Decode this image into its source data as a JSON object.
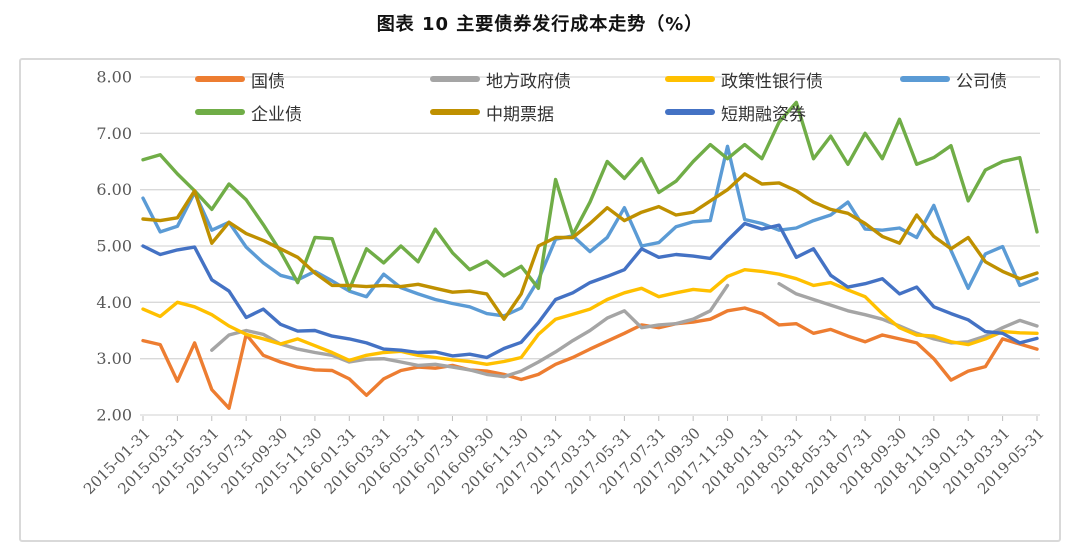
{
  "title": "图表 10 主要债券发行成本走势（%）",
  "chart_data": {
    "type": "line",
    "title": "图表 10 主要债券发行成本走势（%）",
    "xlabel": "",
    "ylabel": "",
    "ylim": [
      2.0,
      8.0
    ],
    "grid": true,
    "legend_position": "top",
    "y_tick_labels": [
      "8.00",
      "7.00",
      "6.00",
      "5.00",
      "4.00",
      "3.00",
      "2.00"
    ],
    "x_tick_labels": [
      "2015-01-31",
      "2015-03-31",
      "2015-05-31",
      "2015-07-31",
      "2015-09-30",
      "2015-11-30",
      "2016-01-31",
      "2016-03-31",
      "2016-05-31",
      "2016-07-31",
      "2016-09-30",
      "2016-11-30",
      "2017-01-31",
      "2017-03-31",
      "2017-05-31",
      "2017-07-31",
      "2017-09-30",
      "2017-11-30",
      "2018-01-31",
      "2018-03-31",
      "2018-05-31",
      "2018-07-31",
      "2018-09-30",
      "2018-11-30",
      "2019-01-31",
      "2019-03-31",
      "2019-05-31"
    ],
    "x": [
      "2015-01",
      "2015-02",
      "2015-03",
      "2015-04",
      "2015-05",
      "2015-06",
      "2015-07",
      "2015-08",
      "2015-09",
      "2015-10",
      "2015-11",
      "2015-12",
      "2016-01",
      "2016-02",
      "2016-03",
      "2016-04",
      "2016-05",
      "2016-06",
      "2016-07",
      "2016-08",
      "2016-09",
      "2016-10",
      "2016-11",
      "2016-12",
      "2017-01",
      "2017-02",
      "2017-03",
      "2017-04",
      "2017-05",
      "2017-06",
      "2017-07",
      "2017-08",
      "2017-09",
      "2017-10",
      "2017-11",
      "2017-12",
      "2018-01",
      "2018-02",
      "2018-03",
      "2018-04",
      "2018-05",
      "2018-06",
      "2018-07",
      "2018-08",
      "2018-09",
      "2018-10",
      "2018-11",
      "2018-12",
      "2019-01",
      "2019-02",
      "2019-03",
      "2019-04",
      "2019-05"
    ],
    "series": [
      {
        "name": "国债",
        "key": "treasury-bond",
        "color": "#ED7D31",
        "values": [
          3.32,
          3.25,
          2.6,
          3.28,
          2.45,
          2.12,
          3.43,
          3.06,
          2.94,
          2.85,
          2.8,
          2.79,
          2.64,
          2.35,
          2.64,
          2.79,
          2.85,
          2.83,
          2.88,
          2.8,
          2.78,
          2.72,
          2.63,
          2.72,
          2.9,
          3.02,
          3.17,
          3.31,
          3.45,
          3.6,
          3.55,
          3.62,
          3.65,
          3.7,
          3.85,
          3.9,
          3.8,
          3.6,
          3.62,
          3.45,
          3.52,
          3.4,
          3.3,
          3.42,
          3.35,
          3.28,
          3.0,
          2.62,
          2.78,
          2.86,
          3.35,
          3.26,
          3.17
        ]
      },
      {
        "name": "地方政府债",
        "key": "local-government-bond",
        "color": "#A5A5A5",
        "values": [
          null,
          null,
          null,
          null,
          3.15,
          3.42,
          3.5,
          3.43,
          3.26,
          3.17,
          3.11,
          3.06,
          2.94,
          2.99,
          3.0,
          2.94,
          2.88,
          2.9,
          2.85,
          2.8,
          2.72,
          2.68,
          2.78,
          2.94,
          3.12,
          3.32,
          3.5,
          3.72,
          3.85,
          3.55,
          3.6,
          3.62,
          3.7,
          3.85,
          4.3,
          null,
          null,
          4.33,
          4.15,
          4.05,
          3.95,
          3.85,
          3.78,
          3.7,
          3.58,
          3.45,
          3.35,
          3.28,
          3.3,
          3.4,
          3.55,
          3.68,
          3.58
        ]
      },
      {
        "name": "政策性银行债",
        "key": "policy-bank-bond",
        "color": "#FFC000",
        "values": [
          3.88,
          3.75,
          4.0,
          3.92,
          3.78,
          3.58,
          3.43,
          3.35,
          3.26,
          3.35,
          3.23,
          3.11,
          2.97,
          3.06,
          3.11,
          3.13,
          3.06,
          3.02,
          2.98,
          2.95,
          2.9,
          2.95,
          3.02,
          3.43,
          3.7,
          3.79,
          3.88,
          4.05,
          4.17,
          4.25,
          4.1,
          4.17,
          4.23,
          4.2,
          4.46,
          4.58,
          4.55,
          4.5,
          4.42,
          4.3,
          4.35,
          4.22,
          4.1,
          3.8,
          3.55,
          3.42,
          3.4,
          3.3,
          3.25,
          3.35,
          3.48,
          3.46,
          3.45
        ]
      },
      {
        "name": "公司债",
        "key": "corporate-bond",
        "color": "#5B9BD5",
        "values": [
          5.85,
          5.25,
          5.35,
          5.95,
          5.28,
          5.42,
          4.98,
          4.7,
          4.48,
          4.4,
          4.55,
          4.38,
          4.2,
          4.1,
          4.5,
          4.26,
          4.15,
          4.05,
          3.98,
          3.92,
          3.8,
          3.76,
          3.9,
          4.4,
          5.12,
          5.18,
          4.9,
          5.15,
          5.68,
          5.0,
          5.06,
          5.34,
          5.43,
          5.45,
          6.77,
          5.47,
          5.4,
          5.28,
          5.32,
          5.45,
          5.55,
          5.78,
          5.3,
          5.28,
          5.32,
          5.15,
          5.72,
          4.92,
          4.25,
          4.86,
          4.99,
          4.3,
          4.42
        ]
      },
      {
        "name": "企业债",
        "key": "enterprise-bond",
        "color": "#70AD47",
        "values": [
          6.53,
          6.62,
          6.28,
          5.98,
          5.65,
          6.1,
          5.82,
          5.38,
          4.9,
          4.35,
          5.15,
          5.13,
          4.23,
          4.95,
          4.7,
          5.0,
          4.72,
          5.3,
          4.88,
          4.58,
          4.73,
          4.47,
          4.64,
          4.25,
          6.18,
          5.2,
          5.78,
          6.5,
          6.2,
          6.55,
          5.95,
          6.15,
          6.5,
          6.8,
          6.55,
          6.8,
          6.55,
          7.2,
          7.55,
          6.55,
          6.95,
          6.45,
          7.0,
          6.55,
          7.25,
          6.45,
          6.57,
          6.78,
          5.8,
          6.35,
          6.5,
          6.57,
          5.25
        ]
      },
      {
        "name": "中期票据",
        "key": "medium-term-note",
        "color": "#BF9000",
        "values": [
          5.48,
          5.45,
          5.5,
          5.98,
          5.05,
          5.42,
          5.22,
          5.1,
          4.95,
          4.8,
          4.52,
          4.3,
          4.3,
          4.28,
          4.3,
          4.28,
          4.32,
          4.25,
          4.18,
          4.2,
          4.15,
          3.7,
          4.15,
          5.0,
          5.15,
          5.15,
          5.4,
          5.68,
          5.45,
          5.6,
          5.7,
          5.55,
          5.6,
          5.8,
          6.0,
          6.28,
          6.1,
          6.12,
          5.98,
          5.78,
          5.65,
          5.58,
          5.4,
          5.17,
          5.05,
          5.55,
          5.17,
          4.95,
          5.15,
          4.72,
          4.55,
          4.42,
          4.52
        ]
      },
      {
        "name": "短期融资券",
        "key": "short-term-financing-bill",
        "color": "#4472C4",
        "values": [
          5.0,
          4.85,
          4.93,
          4.98,
          4.4,
          4.2,
          3.73,
          3.88,
          3.61,
          3.49,
          3.5,
          3.4,
          3.35,
          3.28,
          3.17,
          3.15,
          3.11,
          3.12,
          3.05,
          3.08,
          3.02,
          3.18,
          3.29,
          3.64,
          4.05,
          4.17,
          4.35,
          4.46,
          4.58,
          4.95,
          4.8,
          4.85,
          4.82,
          4.78,
          5.1,
          5.4,
          5.3,
          5.37,
          4.8,
          4.95,
          4.48,
          4.27,
          4.33,
          4.42,
          4.15,
          4.27,
          3.92,
          3.8,
          3.69,
          3.48,
          3.45,
          3.28,
          3.36
        ]
      }
    ],
    "colors": {
      "grid": "#D9D9D9",
      "axis_text": "#595959",
      "frame_border": "#D9D9D9"
    }
  }
}
